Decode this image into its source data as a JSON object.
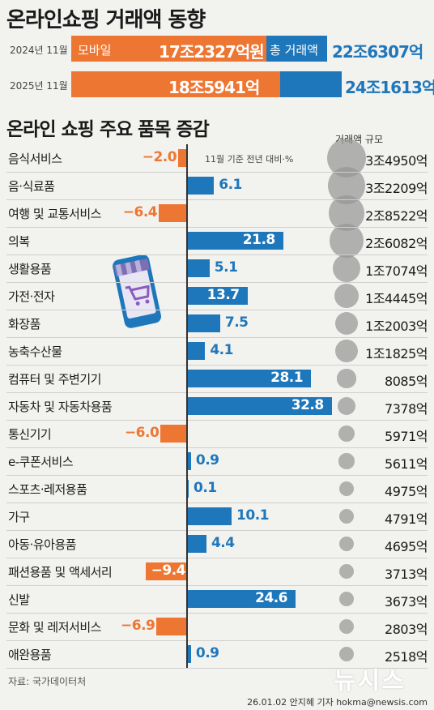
{
  "title": "온라인쇼핑 거래액 동향",
  "summary": {
    "mobile_label": "모바일",
    "total_label": "총 거래액",
    "rows": [
      {
        "year": "2024년 11월",
        "mobile": "17조2327억원",
        "total": "22조6307억",
        "mobile_value": 172327,
        "total_value": 226307
      },
      {
        "year": "2025년 11월",
        "mobile": "18조5941억",
        "total": "24조1613억",
        "mobile_value": 185941,
        "total_value": 241613
      }
    ]
  },
  "colors": {
    "blue": "#1f77bb",
    "orange": "#ee7633",
    "bubble": "#999999"
  },
  "icon": "shopping-cart-phone-icon",
  "source": "자료: 국가데이터처",
  "credit": "26.01.02 안지혜 기자 hokma@newsis.com",
  "logo": "뉴시스",
  "chart_data": {
    "type": "bar",
    "title": "온라인 쇼핑 주요 품목 증감",
    "note": "11월 기준 전년 대비·%",
    "scale_title": "거래액 규모",
    "categories": [
      "음식서비스",
      "음·식료품",
      "여행 및 교통서비스",
      "의복",
      "생활용품",
      "가전·전자",
      "화장품",
      "농축수산물",
      "컴퓨터 및 주변기기",
      "자동차 및 자동차용품",
      "통신기기",
      "e-쿠폰서비스",
      "스포츠·레저용품",
      "가구",
      "아동·유아용품",
      "패션용품 및 액세서리",
      "신발",
      "문화 및 레저서비스",
      "애완용품"
    ],
    "values": [
      -2.0,
      6.1,
      -6.4,
      21.8,
      5.1,
      13.7,
      7.5,
      4.1,
      28.1,
      32.8,
      -6.0,
      0.9,
      0.1,
      10.1,
      4.4,
      -9.4,
      24.6,
      -6.9,
      0.9
    ],
    "value_labels": [
      "−2.0",
      "6.1",
      "−6.4",
      "21.8",
      "5.1",
      "13.7",
      "7.5",
      "4.1",
      "28.1",
      "32.8",
      "−6.0",
      "0.9",
      "0.1",
      "10.1",
      "4.4",
      "−9.4",
      "24.6",
      "−6.9",
      "0.9"
    ],
    "amount_labels": [
      "3조4950억",
      "3조2209억",
      "2조8522억",
      "2조6082억",
      "1조7074억",
      "1조4445억",
      "1조2003억",
      "1조1825억",
      "8085억",
      "7378억",
      "5971억",
      "5611억",
      "4975억",
      "4791억",
      "4695억",
      "3713억",
      "3673억",
      "2803억",
      "2518억"
    ],
    "amounts": [
      34950,
      32209,
      28522,
      26082,
      17074,
      14445,
      12003,
      11825,
      8085,
      7378,
      5971,
      5611,
      4975,
      4791,
      4695,
      3713,
      3673,
      2803,
      2518
    ]
  }
}
